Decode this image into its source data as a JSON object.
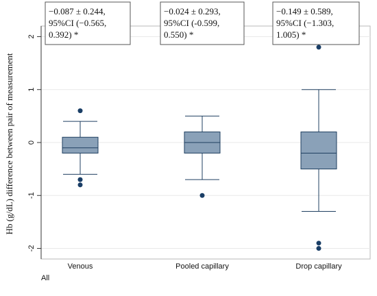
{
  "chart_data": {
    "type": "box",
    "ylabel": "Hb (g/dL) difference between pair of measurement",
    "ylim": [
      -2.2,
      2.2
    ],
    "yticks": [
      -2,
      -1,
      0,
      1,
      2
    ],
    "ytick_labels": [
      "-2",
      "-1",
      "0",
      "1",
      "2"
    ],
    "categories": [
      "Venous",
      "Pooled capillary",
      "Drop capillary"
    ],
    "footnote": "All",
    "box_color": "#8aa1b8",
    "edge_color": "#1f3f60",
    "outlier_color": "#1a3e66",
    "boxes": [
      {
        "category": "Venous",
        "whisker_low": -0.6,
        "q1": -0.2,
        "median": -0.1,
        "q3": 0.1,
        "whisker_high": 0.4,
        "outliers": [
          0.6,
          -0.7,
          -0.8
        ]
      },
      {
        "category": "Pooled capillary",
        "whisker_low": -0.7,
        "q1": -0.2,
        "median": 0.0,
        "q3": 0.2,
        "whisker_high": 0.5,
        "outliers": [
          -1.0
        ]
      },
      {
        "category": "Drop capillary",
        "whisker_low": -1.3,
        "q1": -0.5,
        "median": -0.2,
        "q3": 0.2,
        "whisker_high": 1.0,
        "outliers": [
          1.8,
          -1.9,
          -2.0
        ]
      }
    ],
    "annotations": [
      {
        "lines": [
          "−0.087 ± 0.244,",
          "95%CI (−0.565,",
          "0.392) *"
        ]
      },
      {
        "lines": [
          "−0.024 ± 0.293,",
          "95%CI (-0.599,",
          "0.550) *"
        ]
      },
      {
        "lines": [
          "−0.149 ± 0.589,",
          "95%CI (−1.303,",
          "1.005) *"
        ]
      }
    ]
  }
}
